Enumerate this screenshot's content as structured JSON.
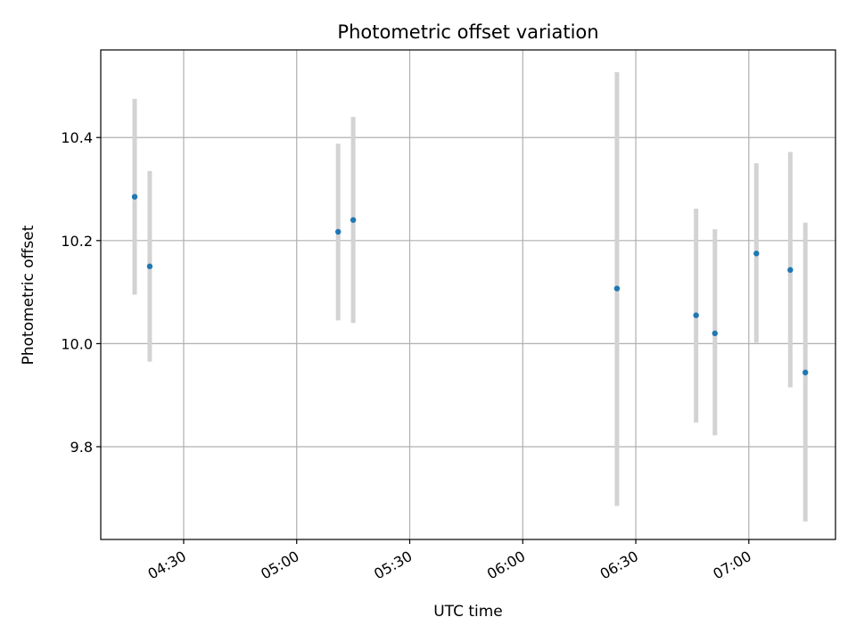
{
  "chart_data": {
    "type": "scatter",
    "title": "Photometric offset variation",
    "xlabel": "UTC time",
    "ylabel": "Photometric offset",
    "xlim": [
      "04:08",
      "07:23"
    ],
    "ylim": [
      9.62,
      10.57
    ],
    "xticks": [
      "04:30",
      "05:00",
      "05:30",
      "06:00",
      "06:30",
      "07:00"
    ],
    "yticks": [
      9.8,
      10.0,
      10.2,
      10.4
    ],
    "ytick_labels": [
      "9.8",
      "10.0",
      "10.2",
      "10.4"
    ],
    "grid": true,
    "point_color": "#1f77b4",
    "errorbar_color": "#d3d3d3",
    "points": [
      {
        "x": "04:17",
        "y": 10.285,
        "low": 10.095,
        "high": 10.475
      },
      {
        "x": "04:21",
        "y": 10.15,
        "low": 9.965,
        "high": 10.335
      },
      {
        "x": "05:11",
        "y": 10.217,
        "low": 10.045,
        "high": 10.388
      },
      {
        "x": "05:15",
        "y": 10.24,
        "low": 10.04,
        "high": 10.44
      },
      {
        "x": "06:25",
        "y": 10.107,
        "low": 9.685,
        "high": 10.527
      },
      {
        "x": "06:46",
        "y": 10.055,
        "low": 9.847,
        "high": 10.262
      },
      {
        "x": "06:51",
        "y": 10.02,
        "low": 9.822,
        "high": 10.222
      },
      {
        "x": "07:02",
        "y": 10.175,
        "low": 10.002,
        "high": 10.35
      },
      {
        "x": "07:11",
        "y": 10.143,
        "low": 9.915,
        "high": 10.372
      },
      {
        "x": "07:15",
        "y": 9.944,
        "low": 9.655,
        "high": 10.235
      }
    ]
  }
}
